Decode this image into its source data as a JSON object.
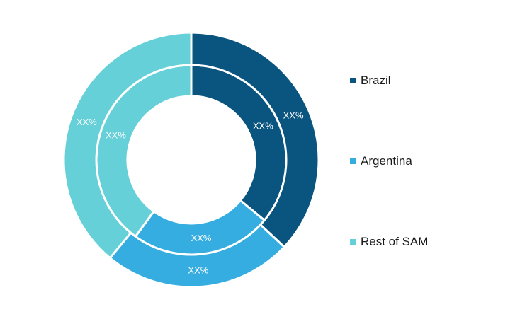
{
  "chart_data": {
    "type": "pie",
    "variant": "double-donut",
    "title": "",
    "categories": [
      "Brazil",
      "Argentina",
      "Rest of SAM"
    ],
    "colors": [
      "#0a5580",
      "#35ade0",
      "#65d0d8"
    ],
    "series": [
      {
        "values": [
          36,
          24,
          40
        ],
        "labels": [
          "XX%",
          "XX%",
          "XX%"
        ]
      },
      {
        "values": [
          37,
          24,
          39
        ],
        "labels": [
          "XX%",
          "XX%",
          "XX%"
        ]
      }
    ],
    "legend_position": "right"
  }
}
